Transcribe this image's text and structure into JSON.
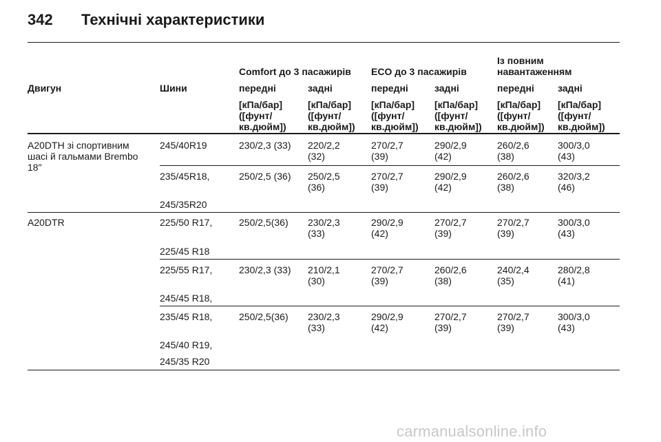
{
  "page": {
    "number": "342",
    "title": "Технічні характеристики"
  },
  "table": {
    "group_headers": [
      "Comfort до 3 пасажирів",
      "ECO до 3 пасажирів",
      "Із повним\nнавантаженням"
    ],
    "col_headers": [
      "Двигун",
      "Шини",
      "передні",
      "задні",
      "передні",
      "задні",
      "передні",
      "задні"
    ],
    "unit_label": "[кПа/бар]\n([фунт/\nкв.дюйм])",
    "engines": [
      "A20DTH зі спортивним\nшасі й гальмами Brembo\n18\"",
      "A20DTR"
    ],
    "rows": [
      {
        "tyre": "245/40R19",
        "tyre2": "",
        "tyre3": "",
        "values": [
          "230/2,3 (33)",
          "220/2,2\n(32)",
          "270/2,7\n(39)",
          "290/2,9\n(42)",
          "260/2,6\n(38)",
          "300/3,0\n(43)"
        ]
      },
      {
        "tyre": "235/45R18,",
        "tyre2": "245/35R20",
        "tyre3": "",
        "values": [
          "250/2,5 (36)",
          "250/2,5\n(36)",
          "270/2,7\n(39)",
          "290/2,9\n(42)",
          "260/2,6\n(38)",
          "320/3,2\n(46)"
        ]
      },
      {
        "tyre": "225/50 R17,",
        "tyre2": "225/45 R18",
        "tyre3": "",
        "values": [
          "250/2,5(36)",
          "230/2,3\n(33)",
          "290/2,9\n(42)",
          "270/2,7\n(39)",
          "270/2,7\n(39)",
          "300/3,0\n(43)"
        ]
      },
      {
        "tyre": "225/55 R17,",
        "tyre2": "245/45 R18,",
        "tyre3": "",
        "values": [
          "230/2,3 (33)",
          "210/2,1\n(30)",
          "270/2,7\n(39)",
          "260/2,6\n(38)",
          "240/2,4\n(35)",
          "280/2,8\n(41)"
        ]
      },
      {
        "tyre": "235/45 R18,",
        "tyre2": "245/40 R19,",
        "tyre3": "245/35 R20",
        "values": [
          "250/2,5(36)",
          "230/2,3\n(33)",
          "290/2,9\n(42)",
          "270/2,7\n(39)",
          "270/2,7\n(39)",
          "300/3,0\n(43)"
        ]
      }
    ]
  },
  "watermark": "carmanualsonline.info"
}
